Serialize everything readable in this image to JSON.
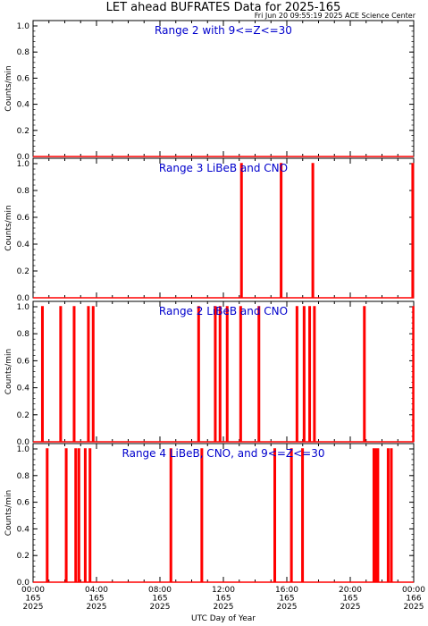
{
  "title": "LET ahead BUFRATES Data for 2025-165",
  "timestamp": "Fri Jun 20 09:55:19 2025 ACE Science Center",
  "xlabel": "UTC Day of Year",
  "colors": {
    "data": "#ff0000",
    "panel_title": "#0000cc",
    "axis": "#000000",
    "background": "#ffffff"
  },
  "chart_data": [
    {
      "type": "line",
      "title": "Range 2 with 9<=Z<=30",
      "ylabel": "Counts/min",
      "ylim": [
        0,
        1
      ],
      "y_ticks": [
        "0.0",
        "0.2",
        "0.4",
        "0.6",
        "0.8",
        "1.0"
      ],
      "xlim_hours": [
        0,
        24
      ],
      "series": [
        {
          "spike_hours_value_1": []
        }
      ]
    },
    {
      "type": "line",
      "title": "Range 3 LiBeB and CNO",
      "ylabel": "Counts/min",
      "ylim": [
        0,
        1
      ],
      "y_ticks": [
        "0.0",
        "0.2",
        "0.4",
        "0.6",
        "0.8",
        "1.0"
      ],
      "xlim_hours": [
        0,
        24
      ],
      "series": [
        {
          "spike_hours_value_1": [
            13.1,
            15.6,
            17.6,
            23.9
          ]
        }
      ]
    },
    {
      "type": "line",
      "title": "Range 2 LiBeB and CNO",
      "ylabel": "Counts/min",
      "ylim": [
        0,
        1
      ],
      "y_ticks": [
        "0.0",
        "0.2",
        "0.4",
        "0.6",
        "0.8",
        "1.0"
      ],
      "xlim_hours": [
        0,
        24
      ],
      "series": [
        {
          "spike_hours_value_1": [
            0.55,
            1.7,
            2.55,
            3.45,
            3.75,
            10.4,
            11.45,
            11.75,
            12.2,
            13.05,
            14.2,
            16.6,
            17.05,
            17.4,
            17.7,
            20.85,
            23.95
          ]
        }
      ]
    },
    {
      "type": "line",
      "title": "Range 4 LiBeB, CNO, and 9<=Z<=30",
      "ylabel": "Counts/min",
      "ylim": [
        0,
        1
      ],
      "y_ticks": [
        "0.0",
        "0.2",
        "0.4",
        "0.6",
        "0.8",
        "1.0"
      ],
      "xlim_hours": [
        0,
        24
      ],
      "series": [
        {
          "spike_hours_value_1": [
            0.85,
            2.05,
            2.65,
            2.85,
            3.25,
            3.55,
            8.65,
            10.6,
            15.2,
            16.25,
            16.95,
            21.45,
            21.6,
            21.7,
            22.35,
            22.55
          ]
        }
      ]
    }
  ],
  "x_ticks": [
    {
      "time": "00:00",
      "doy": "165",
      "year": "2025"
    },
    {
      "time": "04:00",
      "doy": "165",
      "year": "2025"
    },
    {
      "time": "08:00",
      "doy": "165",
      "year": "2025"
    },
    {
      "time": "12:00",
      "doy": "165",
      "year": "2025"
    },
    {
      "time": "16:00",
      "doy": "165",
      "year": "2025"
    },
    {
      "time": "20:00",
      "doy": "165",
      "year": "2025"
    },
    {
      "time": "00:00",
      "doy": "166",
      "year": "2025"
    }
  ]
}
